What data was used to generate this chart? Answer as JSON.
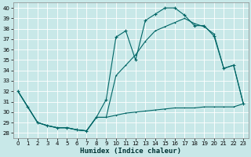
{
  "xlabel": "Humidex (Indice chaleur)",
  "bg_color": "#c8e8e8",
  "line_color": "#006666",
  "grid_color": "#b0d8d8",
  "xlim": [
    -0.5,
    23.5
  ],
  "ylim": [
    27.5,
    40.5
  ],
  "yticks": [
    28,
    29,
    30,
    31,
    32,
    33,
    34,
    35,
    36,
    37,
    38,
    39,
    40
  ],
  "xticks": [
    0,
    1,
    2,
    3,
    4,
    5,
    6,
    7,
    8,
    9,
    10,
    11,
    12,
    13,
    14,
    15,
    16,
    17,
    18,
    19,
    20,
    21,
    22,
    23
  ],
  "s1_x": [
    0,
    1,
    2,
    3,
    4,
    5,
    6,
    7,
    8,
    9,
    10,
    11,
    12,
    13,
    14,
    15,
    16,
    17,
    18,
    19,
    20,
    21,
    22,
    23
  ],
  "s1_y": [
    32,
    30.5,
    29,
    28.7,
    28.5,
    28.5,
    28.3,
    28.2,
    29.5,
    29.5,
    29.7,
    29.9,
    30.0,
    30.1,
    30.2,
    30.3,
    30.4,
    30.4,
    30.4,
    30.5,
    30.5,
    30.5,
    30.5,
    30.8
  ],
  "s2_x": [
    0,
    1,
    2,
    3,
    4,
    5,
    6,
    7,
    8,
    9,
    10,
    11,
    12,
    13,
    14,
    15,
    16,
    17,
    18,
    19,
    20,
    21,
    22,
    23
  ],
  "s2_y": [
    32,
    30.5,
    29,
    28.7,
    28.5,
    28.5,
    28.3,
    28.2,
    29.5,
    31.2,
    37.2,
    37.8,
    35.0,
    38.8,
    39.4,
    40.0,
    40.0,
    39.3,
    38.3,
    38.3,
    37.3,
    34.2,
    34.5,
    30.8
  ],
  "s3_x": [
    0,
    1,
    2,
    3,
    4,
    5,
    6,
    7,
    8,
    9,
    10,
    11,
    12,
    13,
    14,
    15,
    16,
    17,
    18,
    19,
    20,
    21,
    22,
    23
  ],
  "s3_y": [
    32,
    30.5,
    29,
    28.7,
    28.5,
    28.5,
    28.3,
    28.2,
    29.5,
    29.5,
    33.5,
    34.5,
    35.5,
    36.8,
    37.8,
    38.2,
    38.6,
    39.0,
    38.5,
    38.2,
    37.5,
    34.2,
    34.5,
    30.8
  ]
}
